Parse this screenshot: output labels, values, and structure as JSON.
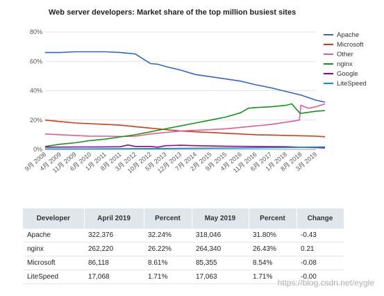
{
  "chart_data": {
    "type": "line",
    "title": "Web server developers: Market share of the top million busiest sites",
    "yticks": [
      "0%",
      "20%",
      "40%",
      "60%",
      "80%"
    ],
    "ylim": [
      0,
      80
    ],
    "xticks": [
      "9月 2008",
      "4月 2009",
      "11月 2009",
      "6月 2010",
      "1月 2011",
      "8月 2011",
      "3月 2012",
      "10月 2012",
      "5月 2013",
      "12月 2013",
      "7月 2014",
      "2月 2015",
      "9月 2015",
      "4月 2016",
      "11月 2016",
      "6月 2017",
      "1月 2018",
      "8月 2018",
      "3月 2019"
    ],
    "grid": true,
    "legend_position": "right",
    "series": [
      {
        "name": "Apache",
        "color": "#3366cc",
        "values": [
          [
            0,
            66
          ],
          [
            1,
            66
          ],
          [
            2,
            66.5
          ],
          [
            3,
            66.5
          ],
          [
            4,
            66.5
          ],
          [
            5,
            66
          ],
          [
            6,
            65
          ],
          [
            6.6,
            61
          ],
          [
            7,
            58.5
          ],
          [
            7.5,
            58
          ],
          [
            8,
            56.5
          ],
          [
            9,
            54
          ],
          [
            10,
            51
          ],
          [
            11,
            49.5
          ],
          [
            12,
            48
          ],
          [
            13,
            46.5
          ],
          [
            14,
            44
          ],
          [
            15,
            42
          ],
          [
            16,
            39.5
          ],
          [
            17,
            37
          ],
          [
            18,
            33.5
          ],
          [
            18.6,
            32.2
          ]
        ]
      },
      {
        "name": "Microsoft",
        "color": "#dc3912",
        "values": [
          [
            0,
            20
          ],
          [
            1,
            19
          ],
          [
            2,
            18
          ],
          [
            3,
            17.5
          ],
          [
            4,
            17
          ],
          [
            5,
            16.5
          ],
          [
            6,
            15.5
          ],
          [
            7,
            14.5
          ],
          [
            8,
            13.5
          ],
          [
            9,
            12.5
          ],
          [
            10,
            12
          ],
          [
            11,
            11.5
          ],
          [
            12,
            11
          ],
          [
            13,
            10.5
          ],
          [
            14,
            10
          ],
          [
            15,
            9.8
          ],
          [
            16,
            9.5
          ],
          [
            17,
            9.3
          ],
          [
            18,
            9
          ],
          [
            18.6,
            8.6
          ]
        ]
      },
      {
        "name": "Other",
        "color": "#e8598f",
        "values": [
          [
            0,
            10.5
          ],
          [
            1,
            10
          ],
          [
            2,
            9.5
          ],
          [
            3,
            9
          ],
          [
            4,
            9
          ],
          [
            5,
            8.8
          ],
          [
            6,
            9
          ],
          [
            7,
            10.5
          ],
          [
            8,
            11.5
          ],
          [
            9,
            12.5
          ],
          [
            10,
            13
          ],
          [
            11,
            13.5
          ],
          [
            12,
            14
          ],
          [
            13,
            15
          ],
          [
            14,
            16
          ],
          [
            15,
            17
          ],
          [
            16,
            18.5
          ],
          [
            16.9,
            20
          ],
          [
            17,
            30
          ],
          [
            17.5,
            28
          ],
          [
            18,
            29
          ],
          [
            18.6,
            31
          ]
        ]
      },
      {
        "name": "nginx",
        "color": "#109618",
        "values": [
          [
            0,
            2
          ],
          [
            1,
            3.5
          ],
          [
            2,
            4.5
          ],
          [
            3,
            6
          ],
          [
            4,
            7
          ],
          [
            5,
            8.5
          ],
          [
            6,
            10
          ],
          [
            7,
            12
          ],
          [
            8,
            14
          ],
          [
            9,
            16
          ],
          [
            10,
            18
          ],
          [
            11,
            20
          ],
          [
            12,
            22
          ],
          [
            13,
            25
          ],
          [
            13.5,
            28
          ],
          [
            14,
            28.5
          ],
          [
            15,
            29
          ],
          [
            16,
            30
          ],
          [
            16.4,
            31
          ],
          [
            16.9,
            25
          ],
          [
            17,
            24.5
          ],
          [
            18,
            26
          ],
          [
            18.6,
            26.4
          ]
        ]
      },
      {
        "name": "Google",
        "color": "#990099",
        "values": [
          [
            0,
            1.5
          ],
          [
            2,
            1.6
          ],
          [
            4,
            1.7
          ],
          [
            5,
            1.8
          ],
          [
            5.5,
            3
          ],
          [
            6,
            2
          ],
          [
            7,
            2
          ],
          [
            7.5,
            1.5
          ],
          [
            8,
            2.5
          ],
          [
            9,
            2.8
          ],
          [
            10,
            2.5
          ],
          [
            12,
            2.2
          ],
          [
            14,
            2
          ],
          [
            16,
            1.8
          ],
          [
            18,
            1.2
          ],
          [
            18.6,
            1
          ]
        ]
      },
      {
        "name": "LiteSpeed",
        "color": "#0099c6",
        "values": [
          [
            0,
            0.3
          ],
          [
            4,
            0.4
          ],
          [
            8,
            0.6
          ],
          [
            12,
            0.9
          ],
          [
            16,
            1.3
          ],
          [
            18.6,
            1.7
          ]
        ]
      }
    ]
  },
  "table": {
    "headers": [
      "Developer",
      "April 2019",
      "Percent",
      "May 2019",
      "Percent",
      "Change"
    ],
    "rows": [
      [
        "Apache",
        "322,376",
        "32.24%",
        "318,046",
        "31.80%",
        "-0.43"
      ],
      [
        "nginx",
        "262,220",
        "26.22%",
        "264,340",
        "26.43%",
        "0.21"
      ],
      [
        "Microsoft",
        "86,118",
        "8.61%",
        "85,355",
        "8.54%",
        "-0.08"
      ],
      [
        "LiteSpeed",
        "17,068",
        "1.71%",
        "17,063",
        "1.71%",
        "-0.00"
      ]
    ]
  },
  "watermark": "https://blog.csdn.net/eygle"
}
